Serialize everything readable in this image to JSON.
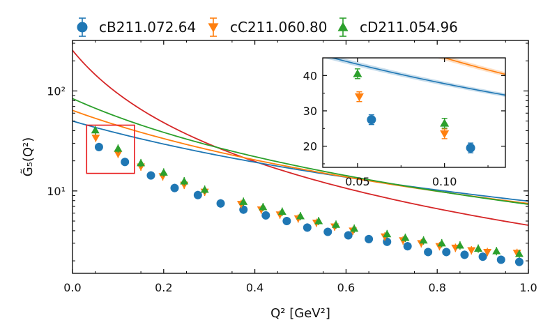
{
  "chart_data": {
    "type": "scatter",
    "xlabel": "Q² [GeV²]",
    "ylabel": "G̃₅(Q²)",
    "xlim": [
      0.0,
      1.0
    ],
    "ylim": [
      1.5,
      320
    ],
    "yscale": "log",
    "xticks": [
      "0.0",
      "0.2",
      "0.4",
      "0.6",
      "0.8",
      "1.0"
    ],
    "yticks": [
      "10¹",
      "10²"
    ],
    "legend_position": "top",
    "series": [
      {
        "name": "cB211.072.64",
        "color": "#1f77b4",
        "marker": "circle",
        "x": [
          0.058,
          0.115,
          0.172,
          0.224,
          0.275,
          0.325,
          0.375,
          0.424,
          0.47,
          0.515,
          0.56,
          0.605,
          0.65,
          0.69,
          0.735,
          0.78,
          0.82,
          0.86,
          0.9,
          0.94,
          0.98
        ],
        "y": [
          27.5,
          19.5,
          14.3,
          10.7,
          9.1,
          7.5,
          6.5,
          5.7,
          5.0,
          4.3,
          3.9,
          3.6,
          3.3,
          3.1,
          2.8,
          2.45,
          2.45,
          2.3,
          2.2,
          2.05,
          1.95
        ]
      },
      {
        "name": "cC211.060.80",
        "color": "#ff7f0e",
        "marker": "triangle-down",
        "x": [
          0.051,
          0.1,
          0.15,
          0.198,
          0.245,
          0.29,
          0.37,
          0.414,
          0.455,
          0.495,
          0.535,
          0.575,
          0.615,
          0.685,
          0.725,
          0.765,
          0.805,
          0.84,
          0.875,
          0.91,
          0.975
        ],
        "y": [
          34.0,
          23.5,
          17.5,
          14.0,
          11.5,
          9.8,
          7.4,
          6.5,
          5.8,
          5.3,
          4.8,
          4.4,
          4.0,
          3.5,
          3.2,
          3.0,
          2.8,
          2.7,
          2.55,
          2.45,
          2.4
        ]
      },
      {
        "name": "cD211.054.96",
        "color": "#2ca02c",
        "marker": "triangle-up",
        "x": [
          0.05,
          0.1,
          0.15,
          0.2,
          0.245,
          0.29,
          0.375,
          0.418,
          0.46,
          0.5,
          0.54,
          0.578,
          0.618,
          0.69,
          0.73,
          0.77,
          0.81,
          0.85,
          0.89,
          0.93,
          0.98
        ],
        "y": [
          40.5,
          26.5,
          19.0,
          15.3,
          12.5,
          10.3,
          7.8,
          6.9,
          6.2,
          5.6,
          5.0,
          4.6,
          4.2,
          3.7,
          3.4,
          3.2,
          3.0,
          2.85,
          2.65,
          2.5,
          2.35
        ]
      }
    ],
    "curves": [
      {
        "color": "#d62728",
        "a": 255,
        "m2": 0.154
      },
      {
        "color": "#1f77b4",
        "a": 50,
        "m2": 0.66
      },
      {
        "color": "#ff7f0e",
        "a": 64,
        "m2": 0.52
      },
      {
        "color": "#2ca02c",
        "a": 84,
        "m2": 0.42
      }
    ],
    "inset": {
      "xlim": [
        0.03,
        0.135
      ],
      "ylim": [
        14,
        45
      ],
      "xticks": [
        "0.05",
        "0.10"
      ],
      "yticks": [
        "20",
        "30",
        "40"
      ],
      "zoom_box": {
        "x": [
          0.031,
          0.136
        ],
        "y": [
          15,
          45.5
        ]
      }
    }
  }
}
